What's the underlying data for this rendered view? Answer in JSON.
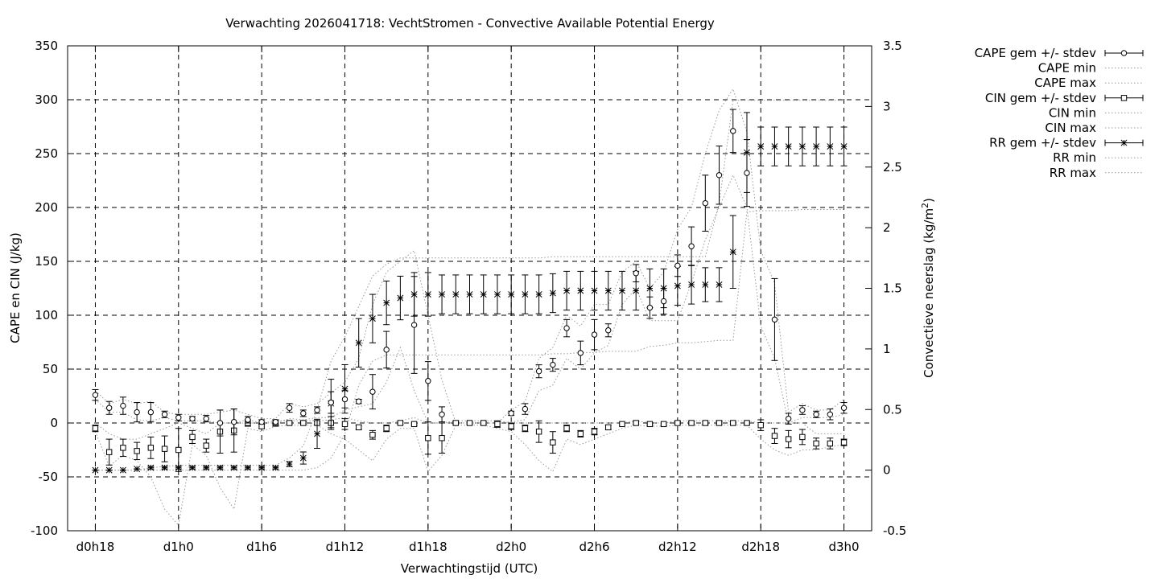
{
  "chart_data": {
    "type": "line",
    "title": "Verwachting 2026041718: VechtStromen - Convective Available Potential Energy",
    "xlabel": "Verwachtingstijd (UTC)",
    "ylabel": "CAPE en CIN (J/kg)",
    "y2label_main": "Convectieve neerslag (kg/m",
    "y2label_sup": "2",
    "y2label_end": ")",
    "x_tick_labels": [
      "d0h18",
      "d1h0",
      "d1h6",
      "d1h12",
      "d1h18",
      "d2h0",
      "d2h6",
      "d2h12",
      "d2h18",
      "d3h0"
    ],
    "x_tick_hours": [
      18,
      24,
      30,
      36,
      42,
      48,
      54,
      60,
      66,
      72
    ],
    "xlim_hours": [
      16,
      74
    ],
    "ylim": [
      -100,
      350
    ],
    "y_ticks": [
      -100,
      -50,
      0,
      50,
      100,
      150,
      200,
      250,
      300,
      350
    ],
    "y2lim": [
      -0.5,
      3.5
    ],
    "y2_ticks": [
      "-0.5",
      "0",
      "0.5",
      "1",
      "1.5",
      "2",
      "2.5",
      "3",
      "3.5"
    ],
    "grid": true,
    "legend_position": "outside-right",
    "legend": [
      "CAPE gem +/- stdev",
      "CAPE min",
      "CAPE max",
      "CIN gem +/- stdev",
      "CIN min",
      "CIN max",
      "RR gem +/- stdev",
      "RR min",
      "RR max"
    ],
    "series": {
      "cape": {
        "x": [
          18,
          19,
          20,
          21,
          22,
          23,
          24,
          25,
          26,
          27,
          28,
          29,
          30,
          31,
          32,
          33,
          34,
          35,
          36,
          37,
          38,
          39,
          40,
          41,
          42,
          43,
          44,
          45,
          46,
          47,
          48,
          49,
          50,
          51,
          52,
          53,
          54,
          55,
          56,
          57,
          58,
          59,
          60,
          61,
          62,
          63,
          64,
          65,
          66,
          67,
          68,
          69,
          70,
          71,
          72
        ],
        "mean": [
          26,
          14,
          16,
          10,
          10,
          8,
          5,
          4,
          4,
          0,
          1,
          3,
          1,
          1,
          14,
          9,
          12,
          19,
          22,
          20,
          29,
          68,
          null,
          91,
          39,
          8,
          null,
          null,
          null,
          null,
          9,
          13,
          48,
          54,
          88,
          65,
          82,
          86,
          null,
          139,
          107,
          113,
          146,
          164,
          204,
          230,
          271,
          232,
          null,
          96,
          4,
          12,
          8,
          8,
          14
        ],
        "sd": [
          5,
          6,
          8,
          9,
          9,
          3,
          3,
          2,
          3,
          12,
          12,
          3,
          2,
          2,
          4,
          3,
          3,
          10,
          8,
          2,
          16,
          17,
          null,
          45,
          18,
          7,
          null,
          null,
          null,
          null,
          2,
          5,
          6,
          6,
          8,
          11,
          14,
          6,
          null,
          8,
          10,
          12,
          10,
          18,
          26,
          27,
          20,
          31,
          null,
          38,
          5,
          4,
          3,
          5,
          5
        ],
        "min": [
          22,
          10,
          10,
          3,
          2,
          5,
          2,
          2,
          2,
          0,
          0,
          0,
          0,
          0,
          4,
          3,
          5,
          5,
          12,
          15,
          18,
          38,
          70,
          30,
          0,
          0,
          0,
          0,
          0,
          0,
          1,
          3,
          30,
          35,
          60,
          50,
          65,
          72,
          110,
          125,
          95,
          95,
          95,
          130,
          170,
          200,
          230,
          200,
          90,
          60,
          0,
          5,
          5,
          5,
          8
        ],
        "max": [
          30,
          18,
          22,
          18,
          20,
          10,
          8,
          8,
          8,
          10,
          12,
          8,
          4,
          4,
          18,
          15,
          18,
          28,
          38,
          60,
          110,
          140,
          150,
          160,
          100,
          40,
          0,
          0,
          0,
          0,
          12,
          20,
          60,
          70,
          100,
          90,
          110,
          110,
          140,
          150,
          125,
          140,
          180,
          200,
          250,
          290,
          310,
          270,
          160,
          130,
          10,
          18,
          12,
          12,
          22
        ]
      },
      "cin": {
        "x": [
          18,
          19,
          20,
          21,
          22,
          23,
          24,
          25,
          26,
          27,
          28,
          29,
          30,
          31,
          32,
          33,
          34,
          35,
          36,
          37,
          38,
          39,
          40,
          41,
          42,
          43,
          44,
          45,
          46,
          47,
          48,
          49,
          50,
          51,
          52,
          53,
          54,
          55,
          56,
          57,
          58,
          59,
          60,
          61,
          62,
          63,
          64,
          65,
          66,
          67,
          68,
          69,
          70,
          71,
          72
        ],
        "mean": [
          -5,
          -27,
          -23,
          -26,
          -23,
          -24,
          -25,
          -13,
          -21,
          -8,
          -7,
          0,
          -3,
          0,
          0,
          0,
          0,
          0,
          -1,
          -4,
          -11,
          -5,
          0,
          -1,
          -14,
          -14,
          0,
          0,
          0,
          -1,
          -3,
          -5,
          -8,
          -18,
          -5,
          -10,
          -8,
          -4,
          -1,
          0,
          -1,
          -1,
          0,
          0,
          0,
          0,
          0,
          0,
          -2,
          -12,
          -15,
          -13,
          -19,
          -19,
          -18
        ],
        "sd": [
          3,
          12,
          8,
          8,
          10,
          12,
          20,
          6,
          6,
          20,
          20,
          3,
          2,
          3,
          1,
          1,
          1,
          6,
          5,
          2,
          4,
          3,
          1,
          1,
          15,
          14,
          1,
          1,
          1,
          3,
          3,
          3,
          10,
          10,
          3,
          3,
          3,
          2,
          1,
          1,
          1,
          1,
          1,
          1,
          1,
          1,
          1,
          1,
          5,
          7,
          8,
          7,
          5,
          5,
          3
        ],
        "min": [
          -8,
          -40,
          -30,
          -35,
          -50,
          -80,
          -95,
          -20,
          -30,
          -60,
          -80,
          -5,
          -8,
          -3,
          -2,
          -2,
          -2,
          -10,
          -15,
          -25,
          -35,
          -15,
          -5,
          -5,
          -45,
          -30,
          -2,
          -2,
          -2,
          -5,
          -8,
          -20,
          -35,
          -45,
          -15,
          -20,
          -15,
          -10,
          -5,
          -2,
          -3,
          -3,
          -2,
          -2,
          -2,
          -2,
          -2,
          -2,
          -15,
          -25,
          -30,
          -25,
          -25,
          -22,
          -20
        ],
        "max": [
          0,
          -10,
          -15,
          -15,
          -10,
          -5,
          0,
          -5,
          -10,
          0,
          0,
          3,
          0,
          2,
          2,
          2,
          2,
          3,
          5,
          2,
          0,
          0,
          2,
          5,
          0,
          0,
          2,
          2,
          2,
          2,
          0,
          0,
          0,
          0,
          0,
          0,
          0,
          0,
          0,
          2,
          0,
          0,
          2,
          2,
          2,
          2,
          2,
          2,
          0,
          0,
          0,
          0,
          -10,
          -10,
          -10
        ]
      },
      "rr": {
        "x": [
          18,
          19,
          20,
          21,
          22,
          23,
          24,
          25,
          26,
          27,
          28,
          29,
          30,
          31,
          32,
          33,
          34,
          35,
          36,
          37,
          38,
          39,
          40,
          41,
          42,
          43,
          44,
          45,
          46,
          47,
          48,
          49,
          50,
          51,
          52,
          53,
          54,
          55,
          56,
          57,
          58,
          59,
          60,
          61,
          62,
          63,
          64,
          65,
          66,
          67,
          68,
          69,
          70,
          71,
          72
        ],
        "mean": [
          0,
          0,
          0,
          0.01,
          0.02,
          0.02,
          0.02,
          0.02,
          0.02,
          0.02,
          0.02,
          0.02,
          0.02,
          0.02,
          0.05,
          0.1,
          0.3,
          0.55,
          0.67,
          1.05,
          1.25,
          1.38,
          1.42,
          1.45,
          1.45,
          1.45,
          1.45,
          1.45,
          1.45,
          1.45,
          1.45,
          1.45,
          1.45,
          1.46,
          1.48,
          1.48,
          1.48,
          1.48,
          1.48,
          1.48,
          1.5,
          1.5,
          1.52,
          1.53,
          1.53,
          1.53,
          1.8,
          2.62,
          2.67,
          2.67,
          2.67,
          2.67,
          2.67,
          2.67,
          2.67
        ],
        "sd": [
          0,
          0,
          0,
          0,
          0.01,
          0.01,
          0.01,
          0.01,
          0.01,
          0.01,
          0.01,
          0.01,
          0.01,
          0.01,
          0.02,
          0.05,
          0.12,
          0.2,
          0.2,
          0.2,
          0.2,
          0.18,
          0.18,
          0.18,
          0.18,
          0.16,
          0.16,
          0.16,
          0.16,
          0.16,
          0.16,
          0.16,
          0.16,
          0.16,
          0.16,
          0.16,
          0.16,
          0.16,
          0.16,
          0.16,
          0.16,
          0.16,
          0.16,
          0.16,
          0.14,
          0.14,
          0.3,
          0.33,
          0.16,
          0.16,
          0.16,
          0.16,
          0.16,
          0.16,
          0.16
        ],
        "min": [
          0,
          0,
          0,
          0,
          0,
          0,
          0,
          0,
          0,
          0,
          0,
          0,
          0,
          0,
          0,
          0,
          0.02,
          0.1,
          0.3,
          0.7,
          0.9,
          0.95,
          0.95,
          0.95,
          0.95,
          0.95,
          0.95,
          0.95,
          0.95,
          0.95,
          0.95,
          0.95,
          0.95,
          0.96,
          0.96,
          0.97,
          0.97,
          0.98,
          0.98,
          0.98,
          1.02,
          1.03,
          1.05,
          1.05,
          1.06,
          1.07,
          1.07,
          2.13,
          2.14,
          2.14,
          2.14,
          2.15,
          2.15,
          2.15,
          2.15
        ],
        "max": [
          0,
          0,
          0,
          0,
          0.02,
          0.03,
          0.04,
          0.04,
          0.04,
          0.04,
          0.04,
          0.04,
          0.04,
          0.04,
          0.1,
          0.2,
          0.5,
          0.9,
          1.1,
          1.35,
          1.6,
          1.7,
          1.75,
          1.75,
          1.75,
          1.75,
          1.75,
          1.75,
          1.75,
          1.75,
          1.75,
          1.75,
          1.75,
          1.76,
          1.76,
          1.76,
          1.76,
          1.76,
          1.76,
          1.76,
          1.76,
          1.76,
          1.76,
          1.76,
          1.76,
          2.2,
          3.05,
          3.05,
          3.05,
          3.05,
          3.05,
          3.05,
          3.05,
          3.05,
          3.05
        ]
      }
    }
  }
}
